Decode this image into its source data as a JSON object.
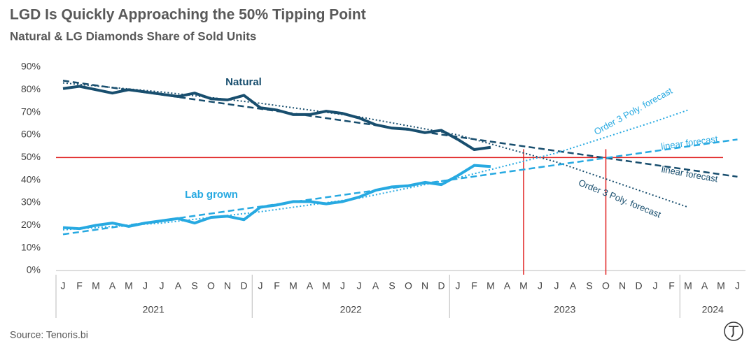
{
  "chart_data": {
    "type": "line",
    "title": "LGD Is Quickly Approaching the 50% Tipping Point",
    "subtitle": "Natural & LG Diamonds Share of Sold Units",
    "source": "Source: Tenoris.bi",
    "categories": [
      "J",
      "F",
      "M",
      "A",
      "M",
      "J",
      "J",
      "A",
      "S",
      "O",
      "N",
      "D",
      "J",
      "F",
      "M",
      "A",
      "M",
      "J",
      "J",
      "A",
      "S",
      "O",
      "N",
      "D",
      "J",
      "F",
      "M",
      "A",
      "M",
      "J",
      "J",
      "A",
      "S",
      "O",
      "N",
      "D",
      "J",
      "F",
      "M",
      "A",
      "M",
      "J"
    ],
    "category_groups": [
      {
        "label": "2021",
        "size": 12
      },
      {
        "label": "2022",
        "size": 12
      },
      {
        "label": "2023",
        "size": 14
      },
      {
        "label": "2024",
        "size": 4
      }
    ],
    "ylim": [
      0,
      90
    ],
    "yticks": [
      {
        "value": 0,
        "label": "0%"
      },
      {
        "value": 10,
        "label": "10%"
      },
      {
        "value": 20,
        "label": "20%"
      },
      {
        "value": 30,
        "label": "30%"
      },
      {
        "value": 40,
        "label": "40%"
      },
      {
        "value": 50,
        "label": "50%"
      },
      {
        "value": 60,
        "label": "60%"
      },
      {
        "value": 70,
        "label": "70%"
      },
      {
        "value": 80,
        "label": "80%"
      },
      {
        "value": 90,
        "label": "90%"
      }
    ],
    "grid": false,
    "series": [
      {
        "name": "Natural",
        "color": "#184e6e",
        "values": [
          80.5,
          81.5,
          80,
          78.5,
          80,
          79,
          78,
          77,
          78.5,
          76,
          75.5,
          77.5,
          72,
          71,
          69,
          69,
          70.5,
          69.5,
          67.5,
          64.5,
          63,
          62.5,
          61,
          62,
          58,
          53.5,
          54.5,
          null,
          null,
          null,
          null,
          null,
          null,
          null,
          null,
          null,
          null,
          null,
          null,
          null,
          null,
          null
        ]
      },
      {
        "name": "Lab grown",
        "color": "#27a9e1",
        "values": [
          19,
          18.5,
          20,
          21,
          19.5,
          21,
          22,
          23,
          21,
          23.5,
          24,
          22.5,
          28,
          29,
          30.5,
          30.5,
          29.5,
          30.5,
          32.5,
          35.5,
          37,
          37.5,
          39,
          38,
          42,
          46.5,
          46,
          null,
          null,
          null,
          null,
          null,
          null,
          null,
          null,
          null,
          null,
          null,
          null,
          null,
          null,
          null
        ]
      }
    ],
    "trendlines": [
      {
        "name": "linear forecast",
        "color": "#184e6e",
        "style": "dashed",
        "x": [
          0,
          41
        ],
        "values": [
          84,
          41.5
        ]
      },
      {
        "name": "Order 3 Poly. forecast",
        "color": "#184e6e",
        "style": "dotted",
        "x": [
          0,
          6,
          12,
          18,
          24,
          30,
          36,
          38
        ],
        "values": [
          83,
          79,
          74,
          68,
          60,
          48,
          33,
          28
        ]
      },
      {
        "name": "linear forecast",
        "color": "#27a9e1",
        "style": "dashed",
        "x": [
          0,
          41
        ],
        "values": [
          16,
          58
        ]
      },
      {
        "name": "Order 3 Poly. forecast",
        "color": "#27a9e1",
        "style": "dotted",
        "x": [
          0,
          6,
          12,
          18,
          24,
          30,
          36,
          38
        ],
        "values": [
          18,
          21,
          26,
          32,
          41,
          52,
          66,
          71
        ]
      }
    ],
    "reference_lines": {
      "color": "#e02020",
      "hline": 50,
      "vlines": [
        28,
        33
      ]
    }
  }
}
